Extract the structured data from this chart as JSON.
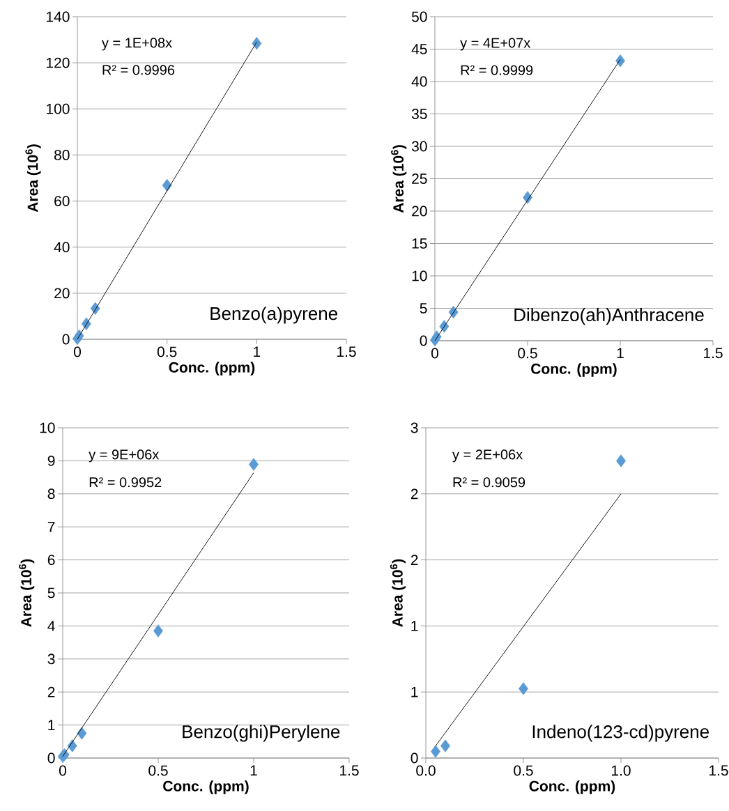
{
  "chart_data": [
    {
      "type": "scatter",
      "xlabel": "**Conc. (ppm)**",
      "ylabel": "**Area (10$^{6}$)**",
      "xlim": [
        0,
        1.5
      ],
      "ylim": [
        0,
        140
      ],
      "xticks": [
        0,
        0.5,
        1,
        1.5
      ],
      "yticks": [
        0,
        20,
        40,
        60,
        80,
        100,
        120,
        140
      ],
      "grid": "y",
      "series": [
        {
          "marker": "diamond",
          "color": "#5b9bd5",
          "x": [
            0,
            0.01,
            0.05,
            0.1,
            0.5,
            1
          ],
          "values": [
            0.3,
            1.5,
            6.7,
            13.4,
            66.8,
            128.4
          ]
        },
        {
          "type": "line",
          "marker": "none",
          "color": "#000000",
          "x": [
            0,
            1
          ],
          "values": [
            0,
            129
          ]
        }
      ],
      "annotations": [
        "y = 1E+08x",
        "R² = 0.9996",
        "Benzo(a)pyrene"
      ]
    },
    {
      "type": "scatter",
      "xlabel": "**Conc. (ppm)**",
      "ylabel": "**Area (10$^{6}$)**",
      "xlim": [
        0,
        1.5
      ],
      "ylim": [
        0,
        50
      ],
      "xticks": [
        0,
        0.5,
        1,
        1.5
      ],
      "yticks": [
        0,
        5,
        10,
        15,
        20,
        25,
        30,
        35,
        40,
        45,
        50
      ],
      "grid": "y",
      "series": [
        {
          "marker": "diamond",
          "color": "#5b9bd5",
          "x": [
            0,
            0.01,
            0.05,
            0.1,
            0.5,
            1
          ],
          "values": [
            0.1,
            0.6,
            2.2,
            4.4,
            22.1,
            43.2
          ]
        },
        {
          "type": "line",
          "marker": "none",
          "color": "#000000",
          "x": [
            0,
            1
          ],
          "values": [
            0,
            43.4
          ]
        }
      ],
      "annotations": [
        "y = 4E+07x",
        "R² = 0.9999",
        "Dibenzo(ah)Anthracene"
      ]
    },
    {
      "type": "scatter",
      "xlabel": "**Conc. (ppm)**",
      "ylabel": "**Area (10$^{6}$)**",
      "xlim": [
        0,
        1.5
      ],
      "ylim": [
        0,
        10
      ],
      "xticks": [
        0,
        0.5,
        1,
        1.5
      ],
      "yticks": [
        0,
        1,
        2,
        3,
        4,
        5,
        6,
        7,
        8,
        9,
        10
      ],
      "grid": "y",
      "series": [
        {
          "marker": "diamond",
          "color": "#5b9bd5",
          "x": [
            0,
            0.01,
            0.05,
            0.1,
            0.5,
            1
          ],
          "values": [
            0.05,
            0.1,
            0.37,
            0.75,
            3.85,
            8.89
          ]
        },
        {
          "type": "line",
          "marker": "none",
          "color": "#000000",
          "x": [
            0,
            1
          ],
          "values": [
            0.05,
            8.64
          ]
        }
      ],
      "annotations": [
        "y = 9E+06x",
        "R² = 0.9952",
        "Benzo(ghi)Perylene"
      ]
    },
    {
      "type": "scatter",
      "xlabel": "**Conc. (ppm)**",
      "ylabel": "**Area (10$^{6}$)**",
      "xlim": [
        0,
        1.5
      ],
      "ylim": [
        0,
        3
      ],
      "xticks": [
        {
          "value": 0,
          "label": "0.0"
        },
        0.5,
        {
          "value": 1,
          "label": "1.0"
        },
        1.5
      ],
      "yticks": [
        0,
        {
          "value": 0.6,
          "label": "1"
        },
        {
          "value": 1.2,
          "label": "1"
        },
        {
          "value": 1.8,
          "label": "2"
        },
        {
          "value": 2.4,
          "label": "2"
        },
        3
      ],
      "grid": "y",
      "series": [
        {
          "marker": "diamond",
          "color": "#5b9bd5",
          "x": [
            0.05,
            0.1,
            0.5,
            1
          ],
          "values": [
            0.06,
            0.11,
            0.63,
            2.7
          ]
        },
        {
          "type": "line",
          "marker": "none",
          "color": "#000000",
          "x": [
            0.05,
            1
          ],
          "values": [
            0.11,
            2.4
          ]
        }
      ],
      "annotations": [
        "y = 2E+06x",
        "R² = 0.9059",
        "Indeno(123-cd)pyrene"
      ]
    }
  ]
}
